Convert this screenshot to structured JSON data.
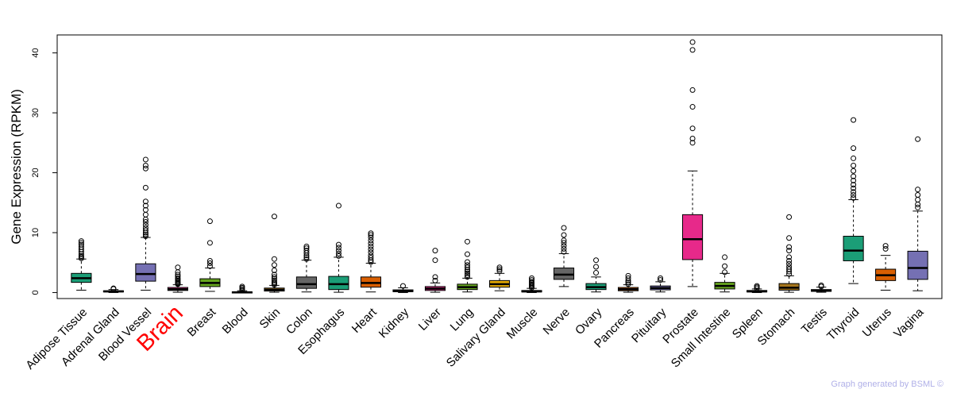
{
  "chart_data": {
    "type": "box",
    "ylabel": "Gene Expression (RPKM)",
    "xlabel": "",
    "ylim": [
      -1,
      43
    ],
    "yticks": [
      0,
      10,
      20,
      30,
      40
    ],
    "highlight_category": "Brain",
    "highlight_color": "#ff0000",
    "categories": [
      {
        "name": "Adipose Tissue",
        "color": "#1b9e77",
        "q1": 1.7,
        "median": 2.4,
        "q3": 3.2,
        "whisker_low": 0.4,
        "whisker_high": 5.6,
        "outliers": [
          5.7,
          5.9,
          6.1,
          6.4,
          6.8,
          7.2,
          7.6,
          8.0,
          8.3,
          8.6
        ]
      },
      {
        "name": "Adrenal Gland",
        "color": "#111111",
        "q1": 0.1,
        "median": 0.2,
        "q3": 0.3,
        "whisker_low": 0.0,
        "whisker_high": 0.5,
        "outliers": [
          0.6,
          0.7
        ]
      },
      {
        "name": "Blood Vessel",
        "color": "#7570b3",
        "q1": 1.9,
        "median": 3.1,
        "q3": 4.8,
        "whisker_low": 0.4,
        "whisker_high": 9.2,
        "outliers": [
          9.4,
          9.7,
          10.0,
          10.4,
          10.8,
          11.3,
          11.8,
          12.2,
          13.0,
          13.8,
          14.5,
          15.2,
          17.5,
          20.7,
          21.2,
          22.2
        ]
      },
      {
        "name": "Brain",
        "color": "#e7298a",
        "q1": 0.35,
        "median": 0.55,
        "q3": 0.85,
        "whisker_low": 0.05,
        "whisker_high": 1.3,
        "outliers": [
          1.4,
          1.5,
          1.6,
          1.8,
          2.0,
          2.2,
          2.4,
          2.7,
          3.0,
          3.4,
          4.2
        ]
      },
      {
        "name": "Breast",
        "color": "#66a61e",
        "q1": 1.0,
        "median": 1.6,
        "q3": 2.3,
        "whisker_low": 0.2,
        "whisker_high": 4.1,
        "outliers": [
          4.4,
          4.9,
          5.3,
          8.3,
          11.9
        ]
      },
      {
        "name": "Blood",
        "color": "#e6ab02",
        "q1": 0.0,
        "median": 0.05,
        "q3": 0.12,
        "whisker_low": 0.0,
        "whisker_high": 0.3,
        "outliers": [
          0.4,
          0.6,
          0.8,
          1.0
        ]
      },
      {
        "name": "Skin",
        "color": "#a6761d",
        "q1": 0.25,
        "median": 0.45,
        "q3": 0.75,
        "whisker_low": 0.05,
        "whisker_high": 1.2,
        "outliers": [
          1.3,
          1.5,
          1.7,
          2.0,
          2.3,
          2.6,
          3.0,
          3.7,
          4.6,
          5.6,
          12.7
        ]
      },
      {
        "name": "Colon",
        "color": "#666666",
        "q1": 0.7,
        "median": 1.4,
        "q3": 2.6,
        "whisker_low": 0.1,
        "whisker_high": 5.4,
        "outliers": [
          5.6,
          5.9,
          6.2,
          6.6,
          7.0,
          7.4,
          7.7
        ]
      },
      {
        "name": "Esophagus",
        "color": "#1b9e77",
        "q1": 0.5,
        "median": 1.4,
        "q3": 2.7,
        "whisker_low": 0.05,
        "whisker_high": 5.9,
        "outliers": [
          6.1,
          6.5,
          7.0,
          7.5,
          8.0,
          14.5
        ]
      },
      {
        "name": "Heart",
        "color": "#d95f02",
        "q1": 0.9,
        "median": 1.6,
        "q3": 2.6,
        "whisker_low": 0.1,
        "whisker_high": 4.9,
        "outliers": [
          5.1,
          5.4,
          5.8,
          6.2,
          6.7,
          7.2,
          7.7,
          8.2,
          8.7,
          9.2,
          9.6,
          9.9
        ]
      },
      {
        "name": "Kidney",
        "color": "#7570b3",
        "q1": 0.15,
        "median": 0.25,
        "q3": 0.45,
        "whisker_low": 0.0,
        "whisker_high": 0.8,
        "outliers": [
          1.1
        ]
      },
      {
        "name": "Liver",
        "color": "#e7298a",
        "q1": 0.35,
        "median": 0.65,
        "q3": 1.0,
        "whisker_low": 0.05,
        "whisker_high": 1.6,
        "outliers": [
          2.0,
          2.6,
          5.4,
          7.0
        ]
      },
      {
        "name": "Lung",
        "color": "#66a61e",
        "q1": 0.5,
        "median": 0.9,
        "q3": 1.4,
        "whisker_low": 0.1,
        "whisker_high": 2.4,
        "outliers": [
          2.6,
          2.9,
          3.2,
          3.5,
          3.8,
          4.2,
          4.6,
          5.1,
          6.4,
          8.5
        ]
      },
      {
        "name": "Salivary Gland",
        "color": "#e6ab02",
        "q1": 0.9,
        "median": 1.4,
        "q3": 2.0,
        "whisker_low": 0.3,
        "whisker_high": 3.2,
        "outliers": [
          3.6,
          3.9,
          4.2
        ]
      },
      {
        "name": "Muscle",
        "color": "#a6761d",
        "q1": 0.1,
        "median": 0.2,
        "q3": 0.35,
        "whisker_low": 0.0,
        "whisker_high": 0.7,
        "outliers": [
          0.8,
          1.0,
          1.2,
          1.4,
          1.6,
          1.8,
          2.1,
          2.4
        ]
      },
      {
        "name": "Nerve",
        "color": "#666666",
        "q1": 2.2,
        "median": 3.0,
        "q3": 4.1,
        "whisker_low": 1.0,
        "whisker_high": 6.5,
        "outliers": [
          6.8,
          7.3,
          7.8,
          8.3,
          8.7,
          9.6,
          10.8
        ]
      },
      {
        "name": "Ovary",
        "color": "#1b9e77",
        "q1": 0.5,
        "median": 0.9,
        "q3": 1.5,
        "whisker_low": 0.1,
        "whisker_high": 2.6,
        "outliers": [
          3.3,
          4.3,
          5.4
        ]
      },
      {
        "name": "Pancreas",
        "color": "#d95f02",
        "q1": 0.3,
        "median": 0.55,
        "q3": 0.85,
        "whisker_low": 0.05,
        "whisker_high": 1.3,
        "outliers": [
          1.4,
          1.7,
          2.0,
          2.4,
          2.8
        ]
      },
      {
        "name": "Pituitary",
        "color": "#7570b3",
        "q1": 0.45,
        "median": 0.75,
        "q3": 1.1,
        "whisker_low": 0.1,
        "whisker_high": 1.8,
        "outliers": [
          2.1,
          2.4
        ]
      },
      {
        "name": "Prostate",
        "color": "#e7298a",
        "q1": 5.5,
        "median": 8.9,
        "q3": 13.0,
        "whisker_low": 1.0,
        "whisker_high": 20.3,
        "outliers": [
          25.0,
          25.7,
          27.4,
          31.0,
          33.8,
          40.5,
          41.8
        ]
      },
      {
        "name": "Small Intestine",
        "color": "#66a61e",
        "q1": 0.6,
        "median": 1.1,
        "q3": 1.7,
        "whisker_low": 0.1,
        "whisker_high": 3.2,
        "outliers": [
          3.4,
          4.4,
          5.9
        ]
      },
      {
        "name": "Spleen",
        "color": "#e6ab02",
        "q1": 0.1,
        "median": 0.2,
        "q3": 0.35,
        "whisker_low": 0.0,
        "whisker_high": 0.6,
        "outliers": [
          0.7,
          0.9,
          1.1
        ]
      },
      {
        "name": "Stomach",
        "color": "#a6761d",
        "q1": 0.4,
        "median": 0.8,
        "q3": 1.5,
        "whisker_low": 0.05,
        "whisker_high": 2.8,
        "outliers": [
          3.1,
          3.5,
          3.9,
          4.3,
          4.8,
          5.3,
          5.9,
          7.0,
          7.6,
          9.1,
          12.6
        ]
      },
      {
        "name": "Testis",
        "color": "#666666",
        "q1": 0.2,
        "median": 0.3,
        "q3": 0.5,
        "whisker_low": 0.05,
        "whisker_high": 0.9,
        "outliers": [
          1.0,
          1.2
        ]
      },
      {
        "name": "Thyroid",
        "color": "#1b9e77",
        "q1": 5.3,
        "median": 7.0,
        "q3": 9.4,
        "whisker_low": 1.5,
        "whisker_high": 15.5,
        "outliers": [
          15.8,
          16.3,
          16.8,
          17.4,
          18.0,
          18.7,
          19.4,
          20.3,
          21.2,
          22.4,
          24.1,
          28.8
        ]
      },
      {
        "name": "Uterus",
        "color": "#d95f02",
        "q1": 2.0,
        "median": 2.9,
        "q3": 3.9,
        "whisker_low": 0.4,
        "whisker_high": 6.2,
        "outliers": [
          7.3,
          7.8
        ]
      },
      {
        "name": "Vagina",
        "color": "#7570b3",
        "q1": 2.2,
        "median": 4.1,
        "q3": 6.9,
        "whisker_low": 0.3,
        "whisker_high": 13.6,
        "outliers": [
          14.2,
          14.7,
          15.5,
          16.3,
          17.2,
          25.6
        ]
      }
    ]
  },
  "credit": "Graph generated by BSML ©"
}
